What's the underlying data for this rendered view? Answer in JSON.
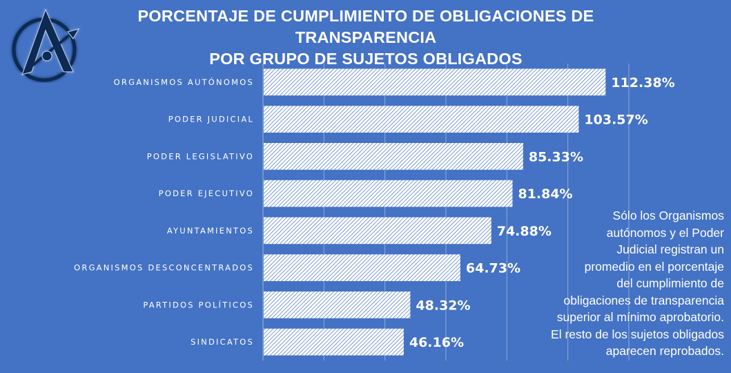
{
  "header": {
    "title_line1": "PORCENTAJE DE CUMPLIMIENTO DE OBLIGACIONES DE TRANSPARENCIA",
    "title_line2": "POR GRUPO DE SUJETOS OBLIGADOS",
    "logo_icon": "compass-a-logo"
  },
  "colors": {
    "background": "#4472c4",
    "bar_fill": "#ffffff",
    "bar_hatch": "#4472c4",
    "gridline": "#8faadc",
    "logo_dark": "#0f2a52",
    "logo_glow": "#a9c4ee"
  },
  "note": {
    "lines": [
      "Sólo los Organismos",
      "autónomos y el Poder",
      "Judicial registran un",
      "promedio en el porcentaje",
      "del cumplimiento de",
      "obligaciones de transparencia",
      "superior al mínimo aprobatorio.",
      "El resto de los sujetos obligados",
      "aparecen reprobados."
    ]
  },
  "chart_data": {
    "type": "bar",
    "orientation": "horizontal",
    "title": "PORCENTAJE DE CUMPLIMIENTO DE OBLIGACIONES DE TRANSPARENCIA POR GRUPO DE SUJETOS OBLIGADOS",
    "xlabel": "",
    "ylabel": "",
    "categories": [
      "ORGANISMOS AUTÓNOMOS",
      "PODER JUDICIAL",
      "PODER LEGISLATIVO",
      "PODER EJECUTIVO",
      "AYUNTAMIENTOS",
      "ORGANISMOS DESCONCENTRADOS",
      "PARTIDOS POLÍTICOS",
      "SINDICATOS"
    ],
    "values": [
      112.38,
      103.57,
      85.33,
      81.84,
      74.88,
      64.73,
      48.32,
      46.16
    ],
    "value_labels": [
      "112.38%",
      "103.57%",
      "85.33%",
      "81.84%",
      "74.88%",
      "64.73%",
      "48.32%",
      "46.16%"
    ],
    "xlim": [
      0,
      120
    ],
    "x_gridlines": [
      0,
      20,
      40,
      60,
      80,
      100,
      120
    ],
    "x_tick_labels_visible": false,
    "grid": true,
    "legend": "none",
    "bar_style": "diagonal-hatch"
  }
}
